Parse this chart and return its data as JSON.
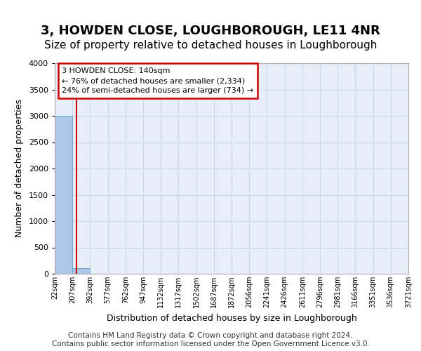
{
  "title": "3, HOWDEN CLOSE, LOUGHBOROUGH, LE11 4NR",
  "subtitle": "Size of property relative to detached houses in Loughborough",
  "xlabel": "Distribution of detached houses by size in Loughborough",
  "ylabel": "Number of detached properties",
  "footer": "Contains HM Land Registry data © Crown copyright and database right 2024.\nContains public sector information licensed under the Open Government Licence v3.0.",
  "bin_labels": [
    "22sqm",
    "207sqm",
    "392sqm",
    "577sqm",
    "762sqm",
    "947sqm",
    "1132sqm",
    "1317sqm",
    "1502sqm",
    "1687sqm",
    "1872sqm",
    "2056sqm",
    "2241sqm",
    "2426sqm",
    "2611sqm",
    "2796sqm",
    "2981sqm",
    "3166sqm",
    "3351sqm",
    "3536sqm",
    "3721sqm"
  ],
  "bar_values": [
    3000,
    110,
    0,
    0,
    0,
    0,
    0,
    0,
    0,
    0,
    0,
    0,
    0,
    0,
    0,
    0,
    0,
    0,
    0,
    0
  ],
  "bar_color": "#aec6e8",
  "bar_edge_color": "#6aaad4",
  "grid_color": "#d0d8e8",
  "axes_bg_color": "#e8eef8",
  "annotation_text": "3 HOWDEN CLOSE: 140sqm\n← 76% of detached houses are smaller (2,334)\n24% of semi-detached houses are larger (734) →",
  "annotation_box_color": "#ffffff",
  "annotation_border_color": "#cc0000",
  "property_line_color": "#cc0000",
  "property_line_x": 0.72,
  "ylim": [
    0,
    4000
  ],
  "yticks": [
    0,
    500,
    1000,
    1500,
    2000,
    2500,
    3000,
    3500,
    4000
  ],
  "title_fontsize": 13,
  "subtitle_fontsize": 11
}
